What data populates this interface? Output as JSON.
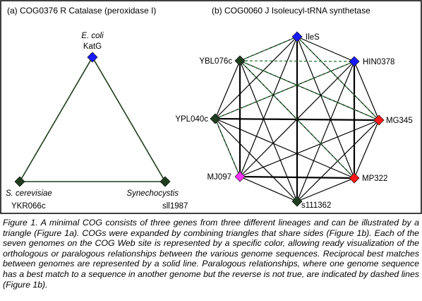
{
  "panel_a": {
    "title": "(a) COG0376 R Catalase (peroxidase I)",
    "nodes": [
      {
        "id": "ecoli",
        "species": "E. coli",
        "gene": "KatG",
        "color": "#1a1aff"
      },
      {
        "id": "scer",
        "species": "S. cerevisiae",
        "gene": "YKR066c",
        "color": "#1f3d1f"
      },
      {
        "id": "syn",
        "species": "Synechocystis",
        "gene": "sll1987",
        "color": "#1f3d1f"
      }
    ]
  },
  "panel_b": {
    "title": "(b) COG0060 J Isoleucyl-tRNA synthetase",
    "nodes": [
      {
        "id": "iles",
        "gene": "IleS",
        "color": "#1a1aff"
      },
      {
        "id": "hin",
        "gene": "HIN0378",
        "color": "#1a1aff"
      },
      {
        "id": "mg",
        "gene": "MG345",
        "color": "#ff1a1a"
      },
      {
        "id": "mp",
        "gene": "MP322",
        "color": "#ff1a1a"
      },
      {
        "id": "sll",
        "gene": "s111362",
        "color": "#1f3d1f"
      },
      {
        "id": "mj",
        "gene": "MJ097",
        "color": "#ff33ff"
      },
      {
        "id": "ypl",
        "gene": "YPL040c",
        "color": "#1f3d1f"
      },
      {
        "id": "ybl",
        "gene": "YBL076c",
        "color": "#1f3d1f"
      }
    ]
  },
  "caption": "Figure 1.  A minimal COG consists of three genes from three different lineages and can be illustrated by a triangle (Figure 1a). COGs were expanded by combining triangles that share sides (Figure 1b). Each of the seven genomes on the COG Web site is represented by a specific color, allowing ready visualization of the orthologous or paralogous relationships between the various genome sequences. Reciprocal best matches between genomes are represented by a solid line. Paralogous relationships, where one genome sequence has a best match to a sequence in another genome but the reverse is not true, are indicated by dashed lines (Figure 1b)."
}
